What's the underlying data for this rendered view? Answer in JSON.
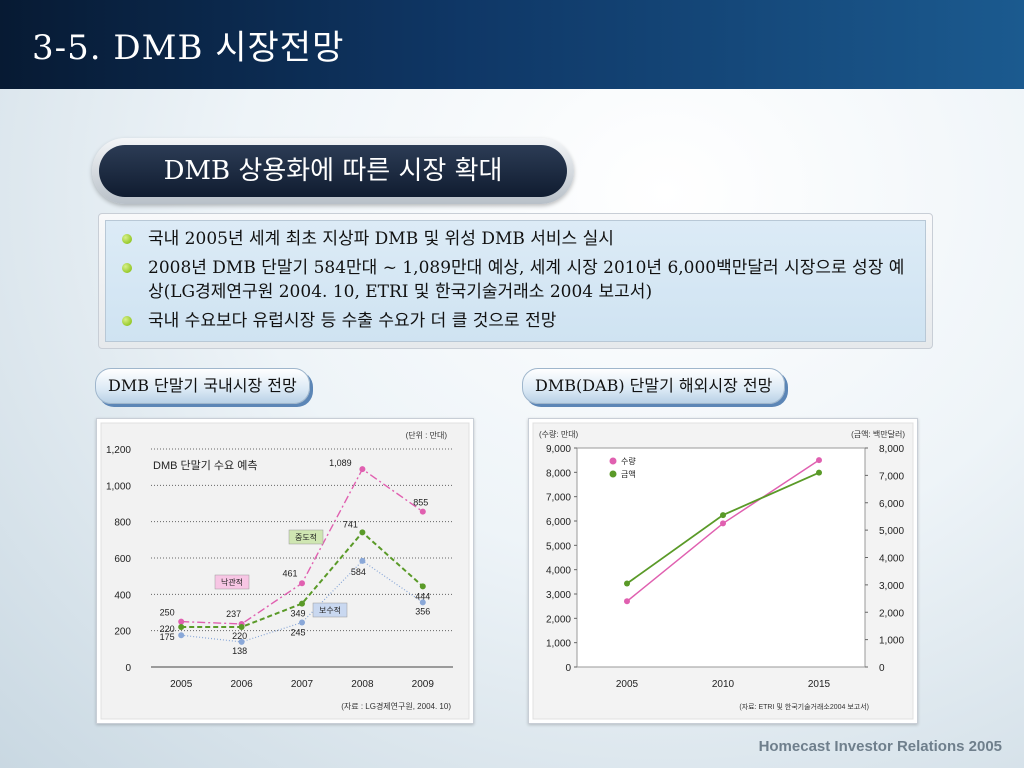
{
  "header": {
    "title": "3-5. DMB 시장전망"
  },
  "section_title": "DMB 상용화에 따른 시장 확대",
  "bullets": [
    "국내 2005년 세계 최초 지상파 DMB 및 위성 DMB 서비스 실시",
    "2008년 DMB 단말기 584만대 ~ 1,089만대 예상, 세계 시장 2010년 6,000백만달러 시장으로 성장 예상(LG경제연구원 2004. 10, ETRI 및 한국기술거래소 2004 보고서)",
    "국내 수요보다 유럽시장 등 수출 수요가 더 클 것으로 전망"
  ],
  "left_tab": "DMB 단말기 국내시장 전망",
  "right_tab": "DMB(DAB) 단말기 해외시장 전망",
  "footer": "Homecast Investor Relations 2005",
  "colors": {
    "optimistic": "#e060b0",
    "moderate": "#5a9a28",
    "conservative": "#8aa8d8",
    "bullet": "#7ab800"
  },
  "chart_data": [
    {
      "type": "line",
      "title": "DMB 단말기 수요 예측",
      "unit_note": "(단위 : 만대)",
      "source": "(자료 : LG경제연구원, 2004. 10)",
      "x": [
        "2005",
        "2006",
        "2007",
        "2008",
        "2009"
      ],
      "ylim": [
        0,
        1200
      ],
      "yticks": [
        0,
        200,
        400,
        600,
        800,
        1000,
        1200
      ],
      "ytick_labels": [
        "0",
        "200",
        "400",
        "600",
        "800",
        "1,000",
        "1,200"
      ],
      "grid": true,
      "series": [
        {
          "name": "낙관적",
          "values": [
            250,
            237,
            461,
            1089,
            855
          ],
          "labels": [
            "250",
            "237",
            "461",
            "1,089",
            "855"
          ]
        },
        {
          "name": "중도적",
          "values": [
            220,
            220,
            349,
            741,
            444
          ],
          "labels": [
            "220",
            "220",
            "349",
            "741",
            "444"
          ]
        },
        {
          "name": "보수적",
          "values": [
            175,
            138,
            245,
            584,
            356
          ],
          "labels": [
            "175",
            "138",
            "245",
            "584",
            "356"
          ]
        }
      ]
    },
    {
      "type": "line",
      "left_unit": "(수량: 만대)",
      "right_unit": "(금액: 백만달러)",
      "source": "(자료: ETRI 및 한국기술거래소2004 보고서)",
      "x": [
        "2005",
        "2010",
        "2015"
      ],
      "y_left": {
        "ylim": [
          0,
          9000
        ],
        "ticks": [
          "0",
          "1,000",
          "2,000",
          "3,000",
          "4,000",
          "5,000",
          "6,000",
          "7,000",
          "8,000",
          "9,000"
        ]
      },
      "y_right": {
        "ylim": [
          0,
          8000
        ],
        "ticks": [
          "0",
          "1,000",
          "2,000",
          "3,000",
          "4,000",
          "5,000",
          "6,000",
          "7,000",
          "8,000"
        ]
      },
      "legend_position": "top-left",
      "series": [
        {
          "name": "수량",
          "axis": "left",
          "values": [
            2700,
            5900,
            8500
          ]
        },
        {
          "name": "금액",
          "axis": "right",
          "values": [
            3050,
            5550,
            7100
          ]
        }
      ]
    }
  ]
}
